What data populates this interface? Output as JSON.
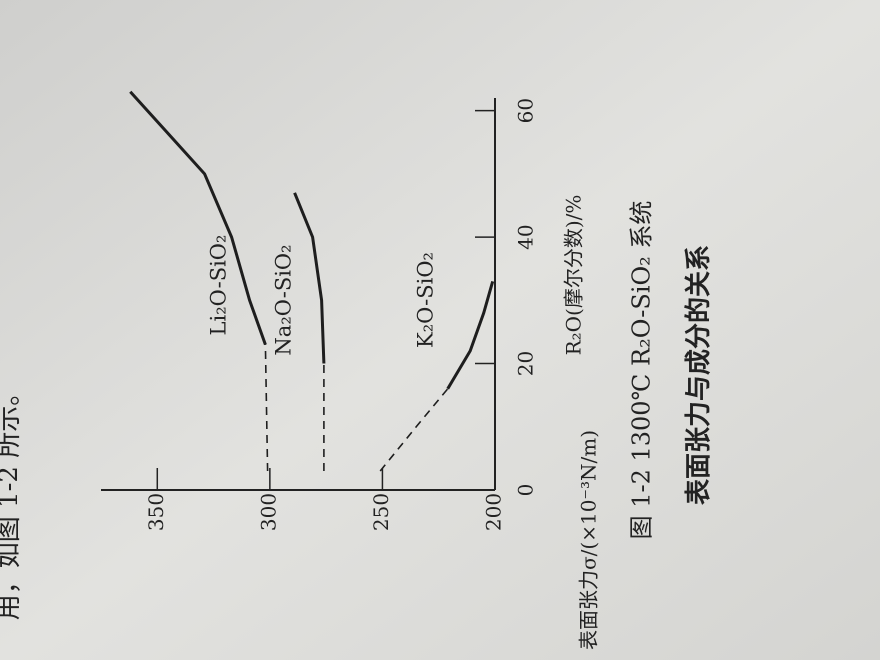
{
  "chart_data": {
    "type": "line",
    "title": "图 1-2  1300℃ R₂O-SiO₂ 系统",
    "subtitle": "表面张力与成分的关系",
    "annotations": [
      "用，如图 1-2 所示。"
    ],
    "x_label": "R₂O(摩尔分数)/%",
    "y_label": "表面张力σ/(×10⁻³N/m)",
    "xlim": [
      0,
      62
    ],
    "xticks": [
      0,
      20,
      40,
      60
    ],
    "ylim": [
      200,
      375
    ],
    "yticks": [
      200,
      250,
      300,
      350
    ],
    "series": [
      {
        "name": "Li₂O-SiO₂",
        "color": "#1e1e1e",
        "dashed_x": [
          3,
          23
        ],
        "dashed_values": [
          301,
          302
        ],
        "x": [
          23,
          30,
          40,
          50,
          63
        ],
        "values": [
          302,
          309,
          317,
          329,
          362
        ]
      },
      {
        "name": "Na₂O-SiO₂",
        "color": "#1e1e1e",
        "dashed_x": [
          3,
          20
        ],
        "dashed_values": [
          276,
          276
        ],
        "x": [
          20,
          30,
          40,
          47
        ],
        "values": [
          276,
          277,
          281,
          289
        ]
      },
      {
        "name": "K₂O-SiO₂",
        "color": "#1e1e1e",
        "dashed_x": [
          3,
          10,
          16
        ],
        "dashed_values": [
          251,
          235,
          221
        ],
        "x": [
          16,
          22,
          28,
          33
        ],
        "values": [
          221,
          211,
          205,
          201
        ]
      }
    ]
  }
}
